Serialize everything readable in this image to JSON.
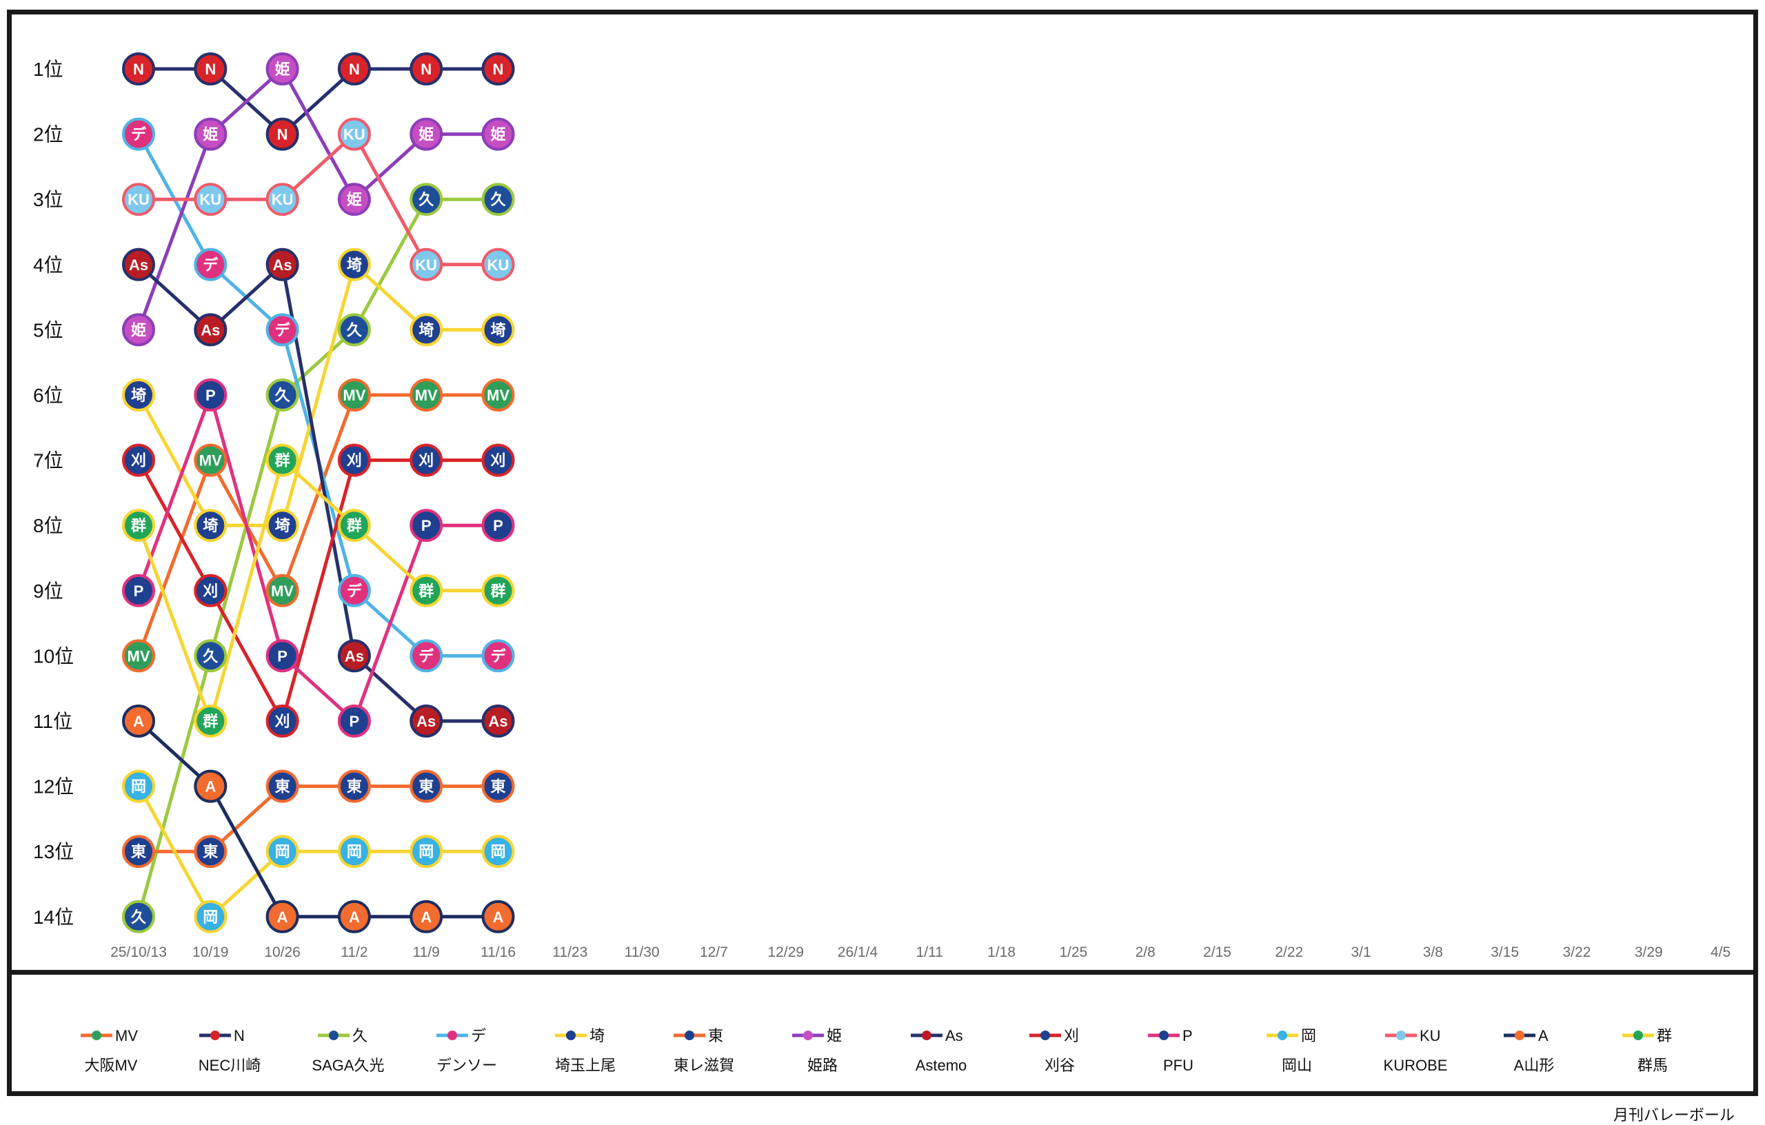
{
  "chart_data": {
    "type": "line",
    "title": "",
    "rank_labels": [
      "1位",
      "2位",
      "3位",
      "4位",
      "5位",
      "6位",
      "7位",
      "8位",
      "9位",
      "10位",
      "11位",
      "12位",
      "13位",
      "14位"
    ],
    "dates": [
      "25/10/13",
      "10/19",
      "10/26",
      "11/2",
      "11/9",
      "11/16",
      "11/23",
      "11/30",
      "12/7",
      "12/29",
      "26/1/4",
      "1/11",
      "1/18",
      "1/25",
      "2/8",
      "2/15",
      "2/22",
      "3/1",
      "3/8",
      "3/15",
      "3/22",
      "3/29",
      "4/5"
    ],
    "ylim": [
      1,
      14
    ],
    "series": [
      {
        "code": "MV",
        "name": "大阪MV",
        "line_color": "#f26b2f",
        "node_color": "#2e9e5a",
        "ranks": [
          10,
          7,
          9,
          6,
          6,
          6
        ]
      },
      {
        "code": "N",
        "name": "NEC川崎",
        "line_color": "#26306b",
        "node_color": "#d8232a",
        "ranks": [
          1,
          1,
          2,
          1,
          1,
          1
        ]
      },
      {
        "code": "久",
        "name": "SAGA久光",
        "line_color": "#9bc93f",
        "node_color": "#1f4e99",
        "ranks": [
          14,
          10,
          6,
          5,
          3,
          3
        ]
      },
      {
        "code": "デ",
        "name": "デンソー",
        "line_color": "#4fb3e6",
        "node_color": "#e0317e",
        "ranks": [
          2,
          4,
          5,
          9,
          10,
          10
        ]
      },
      {
        "code": "埼",
        "name": "埼玉上尾",
        "line_color": "#f7d531",
        "node_color": "#1f3f8f",
        "ranks": [
          6,
          8,
          8,
          4,
          5,
          5
        ]
      },
      {
        "code": "東",
        "name": "東レ滋賀",
        "line_color": "#f26b2f",
        "node_color": "#1f3f8f",
        "ranks": [
          13,
          13,
          12,
          12,
          12,
          12
        ]
      },
      {
        "code": "姫",
        "name": "姫路",
        "line_color": "#8c3eb8",
        "node_color": "#c54fc2",
        "ranks": [
          5,
          2,
          1,
          3,
          2,
          2
        ]
      },
      {
        "code": "As",
        "name": "Astemo",
        "line_color": "#26306b",
        "node_color": "#b81c24",
        "ranks": [
          4,
          5,
          4,
          10,
          11,
          11
        ]
      },
      {
        "code": "刈",
        "name": "刈谷",
        "line_color": "#d8232a",
        "node_color": "#1f3f8f",
        "ranks": [
          7,
          9,
          11,
          7,
          7,
          7
        ]
      },
      {
        "code": "P",
        "name": "PFU",
        "line_color": "#e0317e",
        "node_color": "#1f3f8f",
        "ranks": [
          9,
          6,
          10,
          11,
          8,
          8
        ]
      },
      {
        "code": "岡",
        "name": "岡山",
        "line_color": "#f7d531",
        "node_color": "#38b1e3",
        "ranks": [
          12,
          14,
          13,
          13,
          13,
          13
        ]
      },
      {
        "code": "KU",
        "name": "KUROBE",
        "line_color": "#f05a6a",
        "node_color": "#7ec8ec",
        "ranks": [
          3,
          3,
          3,
          2,
          4,
          4
        ]
      },
      {
        "code": "A",
        "name": "A山形",
        "line_color": "#1d2d5e",
        "node_color": "#f26b2f",
        "ranks": [
          11,
          12,
          14,
          14,
          14,
          14
        ]
      },
      {
        "code": "群",
        "name": "群馬",
        "line_color": "#f7d531",
        "node_color": "#22a55a",
        "ranks": [
          8,
          11,
          7,
          8,
          9,
          9
        ]
      }
    ]
  },
  "credit": "月刊バレーボール"
}
